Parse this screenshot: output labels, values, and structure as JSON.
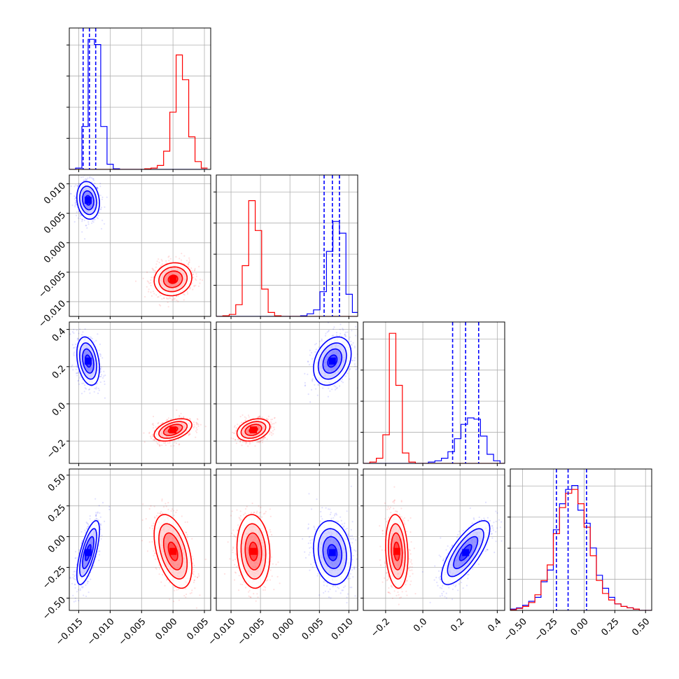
{
  "chart_data": {
    "type": "corner",
    "grid": true,
    "colors": {
      "blue": "#0000ff",
      "red": "#ff0000",
      "grid": "#b0b0b0"
    },
    "parameters": [
      {
        "range": [
          -0.0165,
          0.006
        ],
        "ticks": [
          -0.015,
          -0.01,
          -0.005,
          0.0,
          0.005
        ],
        "tick_labels": [
          "−0.015",
          "−0.010",
          "−0.005",
          "0.000",
          "0.005"
        ]
      },
      {
        "range": [
          -0.0125,
          0.0115
        ],
        "ticks": [
          -0.01,
          -0.005,
          0.0,
          0.005,
          0.01
        ],
        "tick_labels": [
          "−0.010",
          "−0.005",
          "0.000",
          "0.005",
          "0.010"
        ]
      },
      {
        "range": [
          -0.32,
          0.44
        ],
        "ticks": [
          -0.2,
          0.0,
          0.2,
          0.4
        ],
        "tick_labels": [
          "−0.2",
          "0.0",
          "0.2",
          "0.4"
        ]
      },
      {
        "range": [
          -0.6,
          0.55
        ],
        "ticks": [
          -0.5,
          -0.25,
          0.0,
          0.25,
          0.5
        ],
        "tick_labels": [
          "−0.50",
          "−0.25",
          "0.00",
          "0.25",
          "0.50"
        ]
      }
    ],
    "blue_quantiles": [
      [
        -0.0143,
        -0.0133,
        -0.0123
      ],
      [
        0.0058,
        0.0072,
        0.0084
      ],
      [
        0.16,
        0.23,
        0.3
      ],
      [
        -0.225,
        -0.13,
        0.02
      ]
    ],
    "histograms": [
      {
        "bin_edges": [
          -0.0165,
          -0.0155,
          -0.0145,
          -0.0135,
          -0.0125,
          -0.0115,
          -0.0105,
          -0.0095,
          -0.0085,
          -0.0075,
          -0.0065,
          -0.0055,
          -0.0045,
          -0.0035,
          -0.0025,
          -0.0015,
          -0.0005,
          0.0005,
          0.0015,
          0.0025,
          0.0035,
          0.0045,
          0.0055
        ],
        "blue": [
          0,
          0.01,
          0.33,
          1.0,
          0.96,
          0.33,
          0.04,
          0.005,
          0,
          0,
          0,
          0,
          0,
          0,
          0,
          0,
          0,
          0,
          0,
          0,
          0,
          0
        ],
        "red": [
          0,
          0,
          0,
          0,
          0,
          0,
          0,
          0,
          0,
          0,
          0,
          0,
          0.005,
          0.01,
          0.03,
          0.14,
          0.44,
          0.88,
          0.69,
          0.25,
          0.06,
          0.01
        ]
      },
      {
        "bin_edges": [
          -0.0125,
          -0.0114,
          -0.0103,
          -0.0092,
          -0.0081,
          -0.007,
          -0.0059,
          -0.0048,
          -0.0037,
          -0.0026,
          -0.0015,
          -0.0004,
          0.0007,
          0.0018,
          0.0029,
          0.004,
          0.0051,
          0.0062,
          0.0073,
          0.0084,
          0.0095,
          0.0106,
          0.0117
        ],
        "blue": [
          0,
          0,
          0,
          0,
          0,
          0,
          0,
          0,
          0,
          0,
          0,
          0,
          0,
          0.005,
          0.02,
          0.05,
          0.19,
          0.5,
          0.73,
          0.64,
          0.17,
          0.03
        ],
        "red": [
          0,
          0.005,
          0.015,
          0.09,
          0.39,
          0.89,
          0.66,
          0.21,
          0.03,
          0.005,
          0,
          0,
          0,
          0,
          0,
          0,
          0,
          0,
          0,
          0,
          0,
          0
        ]
      },
      {
        "bin_edges": [
          -0.32,
          -0.285,
          -0.25,
          -0.215,
          -0.18,
          -0.145,
          -0.11,
          -0.075,
          -0.04,
          -0.005,
          0.03,
          0.065,
          0.1,
          0.135,
          0.17,
          0.205,
          0.24,
          0.275,
          0.31,
          0.345,
          0.38,
          0.415,
          0.45
        ],
        "blue": [
          0,
          0,
          0,
          0,
          0,
          0,
          0,
          0,
          0,
          0,
          0.01,
          0.02,
          0.04,
          0.09,
          0.19,
          0.3,
          0.35,
          0.34,
          0.21,
          0.07,
          0.02,
          0.0
        ],
        "red": [
          0,
          0.01,
          0.04,
          0.22,
          1.0,
          0.6,
          0.08,
          0.01,
          0,
          0,
          0,
          0,
          0,
          0,
          0,
          0,
          0,
          0,
          0,
          0,
          0,
          0
        ]
      },
      {
        "bin_edges": [
          -0.6,
          -0.55,
          -0.5,
          -0.45,
          -0.4,
          -0.35,
          -0.3,
          -0.25,
          -0.2,
          -0.15,
          -0.1,
          -0.05,
          0.0,
          0.05,
          0.1,
          0.15,
          0.2,
          0.25,
          0.3,
          0.35,
          0.4,
          0.45,
          0.5,
          0.55
        ],
        "blue": [
          0.01,
          0.02,
          0.04,
          0.07,
          0.1,
          0.22,
          0.31,
          0.62,
          0.82,
          0.93,
          0.96,
          0.77,
          0.67,
          0.48,
          0.27,
          0.17,
          0.1,
          0.05,
          0.03,
          0.02,
          0.01,
          0.0,
          0.0
        ],
        "red": [
          0.005,
          0.015,
          0.03,
          0.06,
          0.12,
          0.23,
          0.35,
          0.59,
          0.79,
          0.9,
          0.93,
          0.82,
          0.64,
          0.42,
          0.23,
          0.13,
          0.08,
          0.05,
          0.03,
          0.02,
          0.01,
          0.0,
          0.0
        ]
      }
    ],
    "populations": {
      "blue": {
        "mean": [
          -0.0135,
          0.0072,
          0.23,
          -0.13
        ],
        "std": [
          0.0009,
          0.0016,
          0.065,
          0.13
        ],
        "corr": {
          "0-1": -0.15,
          "0-2": -0.3,
          "0-3": 0.7,
          "1-2": 0.3,
          "1-3": -0.15,
          "2-3": 0.75
        }
      },
      "red": {
        "mean": [
          0.0,
          -0.0062,
          -0.14,
          -0.12
        ],
        "std": [
          0.0015,
          0.0014,
          0.03,
          0.15
        ],
        "corr": {
          "0-1": 0.1,
          "0-2": 0.45,
          "0-3": -0.45,
          "1-2": 0.3,
          "1-3": -0.1,
          "2-3": -0.15
        }
      }
    }
  }
}
